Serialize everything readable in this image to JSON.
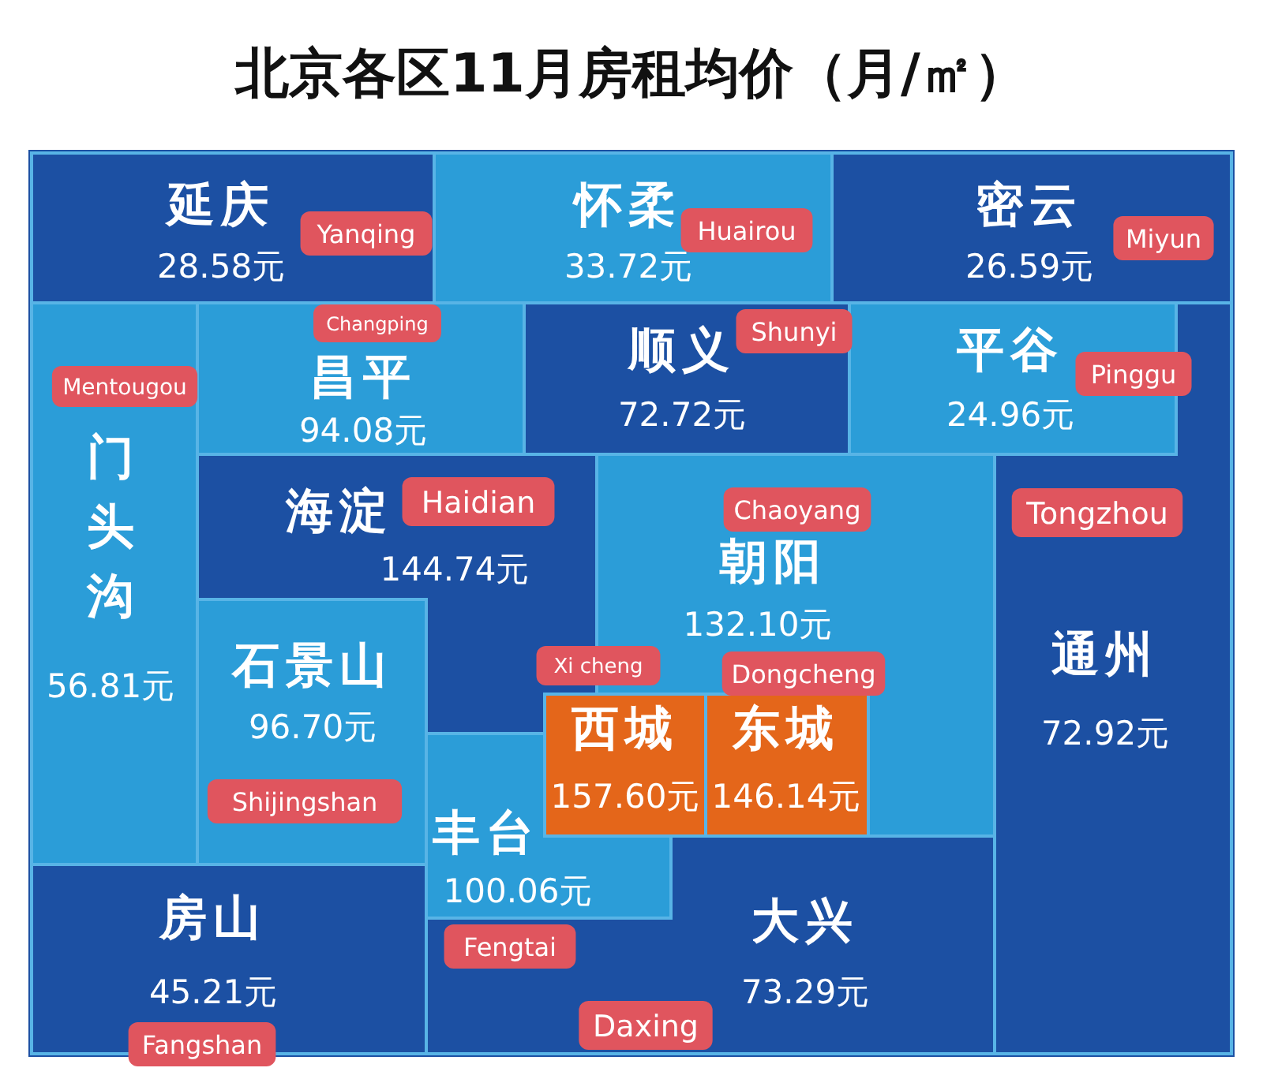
{
  "chart_data": {
    "type": "other",
    "title": "北京各区11月房租均价（月/㎡）",
    "categories": [
      "延庆",
      "怀柔",
      "密云",
      "门头沟",
      "昌平",
      "顺义",
      "平谷",
      "通州",
      "海淀",
      "朝阳",
      "石景山",
      "西城",
      "东城",
      "丰台",
      "房山",
      "大兴"
    ],
    "values": [
      28.58,
      33.72,
      26.59,
      56.81,
      94.08,
      72.72,
      24.96,
      72.92,
      144.74,
      132.1,
      96.7,
      157.6,
      146.14,
      100.06,
      45.21,
      73.29
    ],
    "value_labels": [
      "28.58元",
      "33.72元",
      "26.59元",
      "56.81元",
      "94.08元",
      "72.72元",
      "24.96元",
      "72.92元",
      "144.74元",
      "132.10元",
      "96.70元",
      "157.60元",
      "146.14元",
      "100.06元",
      "45.21元",
      "73.29元"
    ],
    "colors": [
      "#1c50a3",
      "#2b9dd8",
      "#1c50a3",
      "#2b9dd8",
      "#2b9dd8",
      "#1c50a3",
      "#2b9dd8",
      "#1c50a3",
      "#1c50a3",
      "#2b9dd8",
      "#2b9dd8",
      "#e4661a",
      "#e4661a",
      "#2b9dd8",
      "#1c50a3",
      "#1c50a3"
    ],
    "annotations": [
      "Yanqing",
      "Huairou",
      "Miyun",
      "Mentougou",
      "Changping",
      "Shunyi",
      "Pinggu",
      "Tongzhou",
      "Haidian",
      "Chaoyang",
      "Shijingshan",
      "Xi cheng",
      "Dongcheng",
      "Fengtai",
      "Fangshan",
      "Daxing"
    ]
  }
}
